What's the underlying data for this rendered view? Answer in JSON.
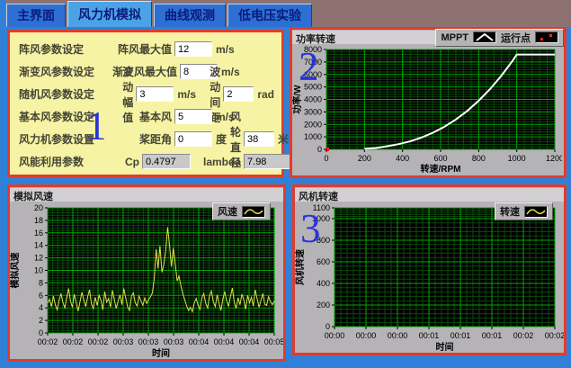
{
  "window": {
    "bg_color": "#3080d8",
    "strip_color": "#8e7272",
    "panel_border_color": "#e23b2c",
    "param_panel_color": "#f6f3a4",
    "graph_panel_color": "#b5b3b6"
  },
  "tabs": [
    {
      "label": "主界面",
      "active": false
    },
    {
      "label": "风力机模拟",
      "active": true
    },
    {
      "label": "曲线观测",
      "active": false
    },
    {
      "label": "低电压实验",
      "active": false
    }
  ],
  "annotations": {
    "panel1": "1",
    "panel2": "2",
    "panel3": "3"
  },
  "params": {
    "rows": [
      {
        "group": "阵风参数设定",
        "fields": [
          {
            "label": "阵风最大值",
            "value": "12",
            "unit": "m/s"
          }
        ]
      },
      {
        "group": "渐变风参数设定",
        "fields": [
          {
            "label": "渐变风最大值",
            "value": "8",
            "unit": "m/s"
          }
        ]
      },
      {
        "group": "随机风参数设定",
        "fields": [
          {
            "label": "波动幅值",
            "value": "3",
            "unit": "m/s"
          },
          {
            "label": "波动间距",
            "value": "2",
            "unit": "rad"
          }
        ]
      },
      {
        "group": "基本风参数设定",
        "fields": [
          {
            "label": "基本风",
            "value": "5",
            "unit": "m/s"
          }
        ]
      },
      {
        "group": "风力机参数设置",
        "fields": [
          {
            "label": "桨距角",
            "value": "0",
            "unit": "度"
          },
          {
            "label": "风轮直径",
            "value": "38",
            "unit": "米"
          }
        ]
      },
      {
        "group": "风能利用参数",
        "fields": [
          {
            "label": "Cp",
            "value": "0.4797",
            "unit": ""
          },
          {
            "label": "lambda",
            "value": "7.98",
            "unit": ""
          }
        ]
      }
    ]
  },
  "charts": {
    "power": {
      "type": "line",
      "title": "功率转速",
      "legend": [
        {
          "label": "MPPT",
          "icon": "white-line"
        },
        {
          "label": "运行点",
          "icon": "red-dots"
        }
      ],
      "xlabel": "转速/RPM",
      "ylabel": "功率/W",
      "xmin": 0,
      "xmax": 1200,
      "ymin": 0,
      "ymax": 8000,
      "xtick_values": [
        0,
        200,
        400,
        600,
        800,
        1000,
        1200
      ],
      "xtick_labels": [
        "0",
        "200",
        "400",
        "600",
        "800",
        "1000",
        "1200"
      ],
      "ytick_values": [
        0,
        1000,
        2000,
        3000,
        4000,
        5000,
        6000,
        7000,
        8000
      ],
      "grid_major_color": "#00a800",
      "grid_minor_color": "#0b4a0b",
      "plot_bg": "#000000",
      "series": [
        {
          "name": "MPPT",
          "color": "#ffffff",
          "width": 2,
          "points": [
            [
              200,
              40
            ],
            [
              260,
              110
            ],
            [
              320,
              250
            ],
            [
              380,
              420
            ],
            [
              440,
              640
            ],
            [
              500,
              950
            ],
            [
              560,
              1330
            ],
            [
              620,
              1810
            ],
            [
              680,
              2390
            ],
            [
              740,
              3080
            ],
            [
              800,
              3890
            ],
            [
              860,
              4830
            ],
            [
              920,
              5910
            ],
            [
              980,
              7130
            ],
            [
              1000,
              7600
            ],
            [
              1100,
              7600
            ],
            [
              1200,
              7600
            ]
          ]
        }
      ],
      "markers": [
        {
          "x": 0,
          "y": 0,
          "color": "#ff2020",
          "name": "运行点"
        }
      ]
    },
    "wind": {
      "type": "line",
      "title": "模拟风速",
      "legend": [
        {
          "label": "风速",
          "icon": "yellow-wave"
        }
      ],
      "xlabel": "时间",
      "ylabel": "模拟风速",
      "xmin": 0,
      "xmax": 1,
      "ymin": 0,
      "ymax": 20,
      "xtick_labels": [
        "00:02",
        "00:02",
        "00:02",
        "00:03",
        "00:03",
        "00:03",
        "00:04",
        "00:04",
        "00:04",
        "00:05"
      ],
      "ytick_values": [
        0,
        2,
        4,
        6,
        8,
        10,
        12,
        14,
        16,
        18,
        20
      ],
      "grid_major_color": "#00a800",
      "grid_minor_color": "#0b4a0b",
      "plot_bg": "#000000",
      "series": [
        {
          "name": "风速",
          "color": "#e3e04a",
          "width": 1,
          "values": [
            4.8,
            5.4,
            4.2,
            5.9,
            4.5,
            3.7,
            5.2,
            6.3,
            4.9,
            4.0,
            5.7,
            7.1,
            5.1,
            4.1,
            6.2,
            4.8,
            3.5,
            5.0,
            6.5,
            5.3,
            4.2,
            5.8,
            6.9,
            4.6,
            3.9,
            5.7,
            4.4,
            6.0,
            5.2,
            3.7,
            6.6,
            4.9,
            5.5,
            4.1,
            6.8,
            5.4,
            3.9,
            5.1,
            6.1,
            4.5,
            7.1,
            5.6,
            4.2,
            3.6,
            5.9,
            6.4,
            4.8,
            4.3,
            5.9,
            5.1,
            4.4,
            5.6,
            4.7,
            5.3,
            5.8,
            6.4,
            8.8,
            13.4,
            10.3,
            13.9,
            9.7,
            10.9,
            13.2,
            16.9,
            14.1,
            10.6,
            13.6,
            11.1,
            8.3,
            9.1,
            7.5,
            6.2,
            5.3,
            4.3,
            3.6,
            4.1,
            3.4,
            4.8,
            5.5,
            4.4,
            3.8,
            5.6,
            6.3,
            4.7,
            4.0,
            5.9,
            6.7,
            5.0,
            4.2,
            6.1,
            4.7,
            3.6,
            5.4,
            6.6,
            5.1,
            4.3,
            5.8,
            7.2,
            4.9,
            3.9,
            5.6,
            4.5,
            6.2,
            5.3,
            3.8,
            6.0,
            4.8,
            5.7,
            4.3,
            6.9,
            5.5,
            4.1,
            5.2,
            6.3,
            4.6,
            4.4,
            5.8,
            5.0,
            4.5,
            5.1
          ]
        }
      ],
      "markers": []
    },
    "rotor": {
      "type": "line",
      "title": "风机转速",
      "legend": [
        {
          "label": "转速",
          "icon": "yellow-wave"
        }
      ],
      "xlabel": "时间",
      "ylabel": "风机转速",
      "xmin": 0,
      "xmax": 1,
      "ymin": 0,
      "ymax": 1100,
      "xtick_labels": [
        "00:00",
        "00:00",
        "00:00",
        "00:01",
        "00:01",
        "00:01",
        "00:02",
        "00:02"
      ],
      "ytick_values": [
        0,
        200,
        400,
        600,
        800,
        1000,
        1100
      ],
      "grid_major_color": "#00a800",
      "grid_minor_color": "#0b4a0b",
      "plot_bg": "#000000",
      "series": [],
      "markers": []
    }
  }
}
